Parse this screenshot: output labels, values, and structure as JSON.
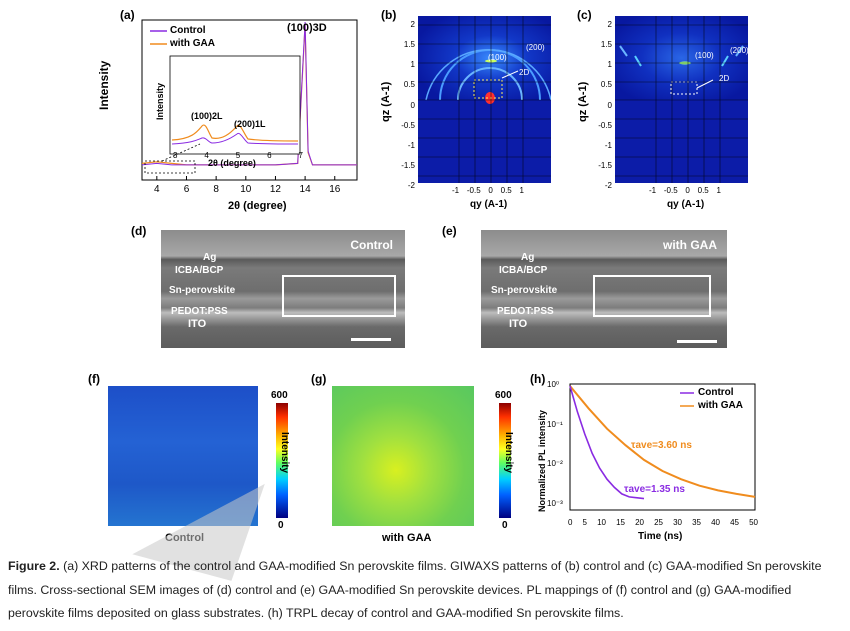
{
  "panels": {
    "a": "(a)",
    "b": "(b)",
    "c": "(c)",
    "d": "(d)",
    "e": "(e)",
    "f": "(f)",
    "g": "(g)",
    "h": "(h)"
  },
  "xrd": {
    "ylabel": "Intensity",
    "xlabel": "2θ (degree)",
    "xticks": [
      "4",
      "6",
      "8",
      "10",
      "12",
      "14",
      "16"
    ],
    "peak_label": "(100)3D",
    "inset": {
      "ylabel": "Intensity",
      "xlabel": "2θ (degree)",
      "xticks": [
        "3",
        "4",
        "5",
        "6",
        "7"
      ],
      "peak1": "(100)2L",
      "peak2": "(200)1L"
    },
    "legend": [
      "Control",
      "with GAA"
    ],
    "colors": {
      "control": "#8a2be2",
      "gaa": "#f08c1e"
    }
  },
  "giwaxs_b": {
    "ylabel": "qz (A-1)",
    "xlabel": "qy (A-1)",
    "yticks": [
      "2",
      "1.5",
      "1",
      "0.5",
      "0",
      "-0.5",
      "-1",
      "-1.5",
      "-2"
    ],
    "xticks": [
      "-1",
      "-0.5",
      "0",
      "0.5",
      "1"
    ],
    "label_100": "(100)",
    "label_200": "(200)",
    "label_2d": "2D"
  },
  "giwaxs_c": {
    "ylabel": "qz (A-1)",
    "xlabel": "qy (A-1)",
    "yticks": [
      "2",
      "1.5",
      "1",
      "0.5",
      "0",
      "-0.5",
      "-1",
      "-1.5",
      "-2"
    ],
    "xticks": [
      "-1",
      "-0.5",
      "0",
      "0.5",
      "1"
    ],
    "label_100": "(100)",
    "label_200": "(200)",
    "label_2d": "2D"
  },
  "sem_d": {
    "title": "Control",
    "layers": [
      "Ag",
      "ICBA/BCP",
      "Sn-perovskite",
      "PEDOT:PSS",
      "ITO"
    ]
  },
  "sem_e": {
    "title": "with GAA",
    "layers": [
      "Ag",
      "ICBA/BCP",
      "Sn-perovskite",
      "PEDOT:PSS",
      "ITO"
    ]
  },
  "pl_f": {
    "label": "Control",
    "cbar_max": "600",
    "cbar_min": "0",
    "cbar_label": "Intensity"
  },
  "pl_g": {
    "label": "with GAA",
    "cbar_max": "600",
    "cbar_min": "0",
    "cbar_label": "Intensity"
  },
  "trpl": {
    "ylabel": "Normalized PL intensity",
    "xlabel": "Time (ns)",
    "xticks": [
      "0",
      "5",
      "10",
      "15",
      "20",
      "25",
      "30",
      "35",
      "40",
      "45",
      "50"
    ],
    "yticks": [
      "10⁰",
      "10⁻¹",
      "10⁻²",
      "10⁻³"
    ],
    "legend": [
      "Control",
      "with GAA"
    ],
    "tau_gaa": "τave=3.60 ns",
    "tau_control": "τave=1.35 ns",
    "colors": {
      "control": "#8a2be2",
      "gaa": "#f08c1e"
    }
  },
  "chart_data": [
    {
      "type": "line",
      "xlabel": "2θ (degree)",
      "ylabel": "Intensity",
      "xlim": [
        3,
        17.5
      ],
      "series": [
        {
          "name": "Control",
          "x": [
            3,
            4,
            5,
            6,
            8,
            10,
            12,
            13.5,
            14.0,
            14.2,
            14.5,
            16,
            17.5
          ],
          "y": [
            0.06,
            0.07,
            0.06,
            0.06,
            0.06,
            0.06,
            0.06,
            0.07,
            1.0,
            0.15,
            0.06,
            0.06,
            0.06
          ]
        },
        {
          "name": "with GAA",
          "x": [
            3,
            4,
            5,
            6,
            8,
            10,
            12,
            13.5,
            14.0,
            14.2,
            14.5,
            16,
            17.5
          ],
          "y": [
            0.07,
            0.08,
            0.07,
            0.06,
            0.06,
            0.06,
            0.06,
            0.07,
            0.98,
            0.14,
            0.06,
            0.06,
            0.06
          ]
        }
      ]
    },
    {
      "type": "line",
      "xlabel": "Time (ns)",
      "ylabel": "Normalized PL intensity",
      "xlim": [
        0,
        50
      ],
      "ylim": [
        0.0005,
        1
      ],
      "yscale": "log",
      "series": [
        {
          "name": "Control",
          "x": [
            0,
            2,
            4,
            6,
            8,
            10,
            12,
            14,
            16,
            20
          ],
          "y": [
            1,
            0.2,
            0.05,
            0.015,
            0.006,
            0.003,
            0.0018,
            0.0012,
            0.001,
            0.0009
          ]
        },
        {
          "name": "with GAA",
          "x": [
            0,
            5,
            10,
            15,
            20,
            25,
            30,
            35,
            40,
            45,
            50
          ],
          "y": [
            1,
            0.25,
            0.07,
            0.025,
            0.01,
            0.005,
            0.003,
            0.002,
            0.0015,
            0.0012,
            0.001
          ]
        }
      ],
      "annotations": [
        "τave=3.60 ns",
        "τave=1.35 ns"
      ]
    }
  ],
  "caption": {
    "bold": "Figure 2.",
    "text": " (a) XRD patterns of the control and GAA-modified Sn perovskite films. GIWAXS patterns of (b) control and (c) GAA-modified Sn perovskite films. Cross-sectional SEM images of (d) control and (e) GAA-modified Sn perovskite devices. PL mappings of (f) control and (g) GAA-modified perovskite films deposited on glass substrates. (h) TRPL decay of control and GAA-modified Sn perovskite films."
  }
}
